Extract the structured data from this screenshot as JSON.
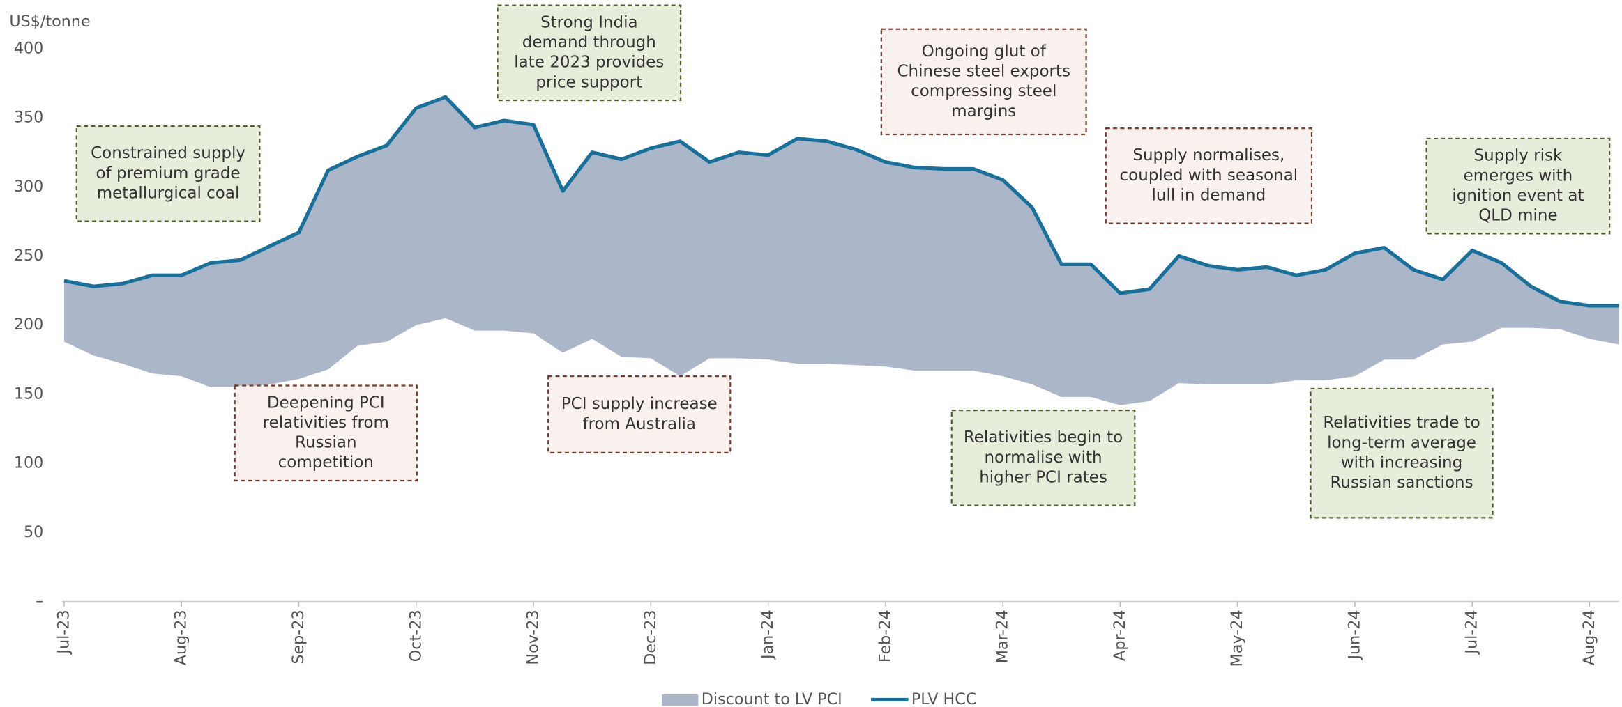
{
  "chart_data": {
    "type": "band-line",
    "y_label": "US$/tonne",
    "categories": [
      "Jul-23",
      null,
      null,
      null,
      "Aug-23",
      null,
      null,
      null,
      "Sep-23",
      null,
      null,
      null,
      "Oct-23",
      null,
      null,
      null,
      "Nov-23",
      null,
      null,
      null,
      "Dec-23",
      null,
      null,
      null,
      "Jan-24",
      null,
      null,
      null,
      "Feb-24",
      null,
      null,
      null,
      "Mar-24",
      null,
      null,
      null,
      "Apr-24",
      null,
      null,
      null,
      "May-24",
      null,
      null,
      null,
      "Jun-24",
      null,
      null,
      null,
      "Jul-24",
      null,
      null,
      null,
      "Aug-24",
      null
    ],
    "series": [
      {
        "name": "Discount to LV PCI",
        "kind": "band",
        "color": "#abb7c9",
        "values": [
          188,
          178,
          172,
          165,
          163,
          155,
          155,
          157,
          161,
          168,
          185,
          188,
          200,
          205,
          196,
          196,
          194,
          180,
          190,
          177,
          176,
          163,
          176,
          176,
          175,
          172,
          172,
          171,
          170,
          167,
          167,
          167,
          163,
          157,
          148,
          148,
          142,
          145,
          158,
          157,
          157,
          157,
          160,
          160,
          163,
          175,
          175,
          186,
          188,
          198,
          198,
          197,
          190,
          186
        ]
      },
      {
        "name": "PLV HCC",
        "kind": "line",
        "color": "#17719b",
        "values": [
          232,
          228,
          230,
          236,
          236,
          245,
          247,
          257,
          267,
          312,
          322,
          330,
          357,
          365,
          343,
          348,
          345,
          297,
          325,
          320,
          328,
          333,
          318,
          325,
          323,
          335,
          333,
          327,
          318,
          314,
          313,
          313,
          305,
          285,
          244,
          244,
          223,
          226,
          250,
          243,
          240,
          242,
          236,
          240,
          252,
          256,
          240,
          233,
          254,
          245,
          228,
          217,
          214,
          214
        ]
      }
    ],
    "ylim": [
      0,
      400
    ],
    "yticks": [
      {
        "value": 0,
        "label": "–"
      },
      50,
      100,
      150,
      200,
      250,
      300,
      350,
      400
    ],
    "annotations": [
      {
        "lines": [
          "Constrained supply",
          "of premium grade",
          "metallurgical coal"
        ],
        "fill": "#e7eddb",
        "border": "#4f5f2a"
      },
      {
        "lines": [
          "Strong India",
          "demand through",
          "late 2023 provides",
          "price support"
        ],
        "fill": "#e7eddb",
        "border": "#4f5f2a"
      },
      {
        "lines": [
          "Ongoing glut of",
          "Chinese steel exports",
          "compressing steel",
          "margins"
        ],
        "fill": "#f8f1ed",
        "border": "#7a3e2e"
      },
      {
        "lines": [
          "Supply normalises,",
          "coupled with seasonal",
          "lull in demand"
        ],
        "fill": "#f8f1ed",
        "border": "#7a3e2e"
      },
      {
        "lines": [
          "Supply risk",
          "emerges with",
          "ignition event at",
          "QLD mine"
        ],
        "fill": "#e7eddb",
        "border": "#4f5f2a"
      },
      {
        "lines": [
          "Deepening PCI",
          "relativities from",
          "Russian",
          "competition"
        ],
        "fill": "#f8f1ed",
        "border": "#7a3e2e"
      },
      {
        "lines": [
          "PCI supply increase",
          "from Australia"
        ],
        "fill": "#f8f1ed",
        "border": "#7a3e2e"
      },
      {
        "lines": [
          "Relativities begin to",
          "normalise with",
          "higher PCI rates"
        ],
        "fill": "#e7eddb",
        "border": "#4f5f2a"
      },
      {
        "lines": [
          "Relativities trade to",
          "long-term average",
          "with increasing",
          "Russian sanctions"
        ],
        "fill": "#e7eddb",
        "border": "#4f5f2a"
      }
    ]
  }
}
